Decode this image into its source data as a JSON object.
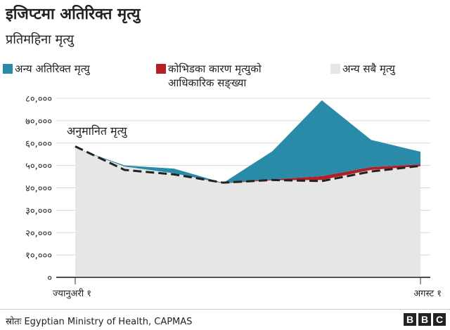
{
  "title": "इजिप्टमा अतिरिक्त मृत्यु",
  "subtitle": "प्रतिमहिना मृत्यु",
  "legend": [
    {
      "label": "अन्य अतिरिक्त मृत्यु",
      "color": "#2a8ba8"
    },
    {
      "label": "कोभिडका कारण मृत्युको आधिकारिक सङ्ख्या",
      "color": "#b21f24"
    },
    {
      "label": "अन्य सबै मृत्यु",
      "color": "#e6e6e6"
    }
  ],
  "chart_data": {
    "type": "area",
    "stacked": true,
    "x": [
      "ज्यानुअरी १",
      "",
      "",
      "",
      "",
      "",
      "",
      "अगस्ट १"
    ],
    "x_tick_labels": [
      "ज्यानुअरी १",
      "अगस्ट १"
    ],
    "ylim": [
      0,
      80000
    ],
    "y_ticks": [
      0,
      10000,
      20000,
      30000,
      40000,
      50000,
      60000,
      70000,
      80000
    ],
    "y_tick_labels": [
      "०",
      "१०,०००",
      "२०,०००",
      "३०,०००",
      "४०,०००",
      "५०,०००",
      "६०,०००",
      "७०,०००",
      "८०,०००"
    ],
    "series": [
      {
        "name": "अन्य सबै मृत्यु",
        "color": "#e6e6e6",
        "values": [
          57800,
          49500,
          46500,
          42000,
          43400,
          43500,
          48000,
          49700
        ]
      },
      {
        "name": "कोभिडका कारण मृत्युको आधिकारिक सङ्ख्या",
        "color": "#b21f24",
        "values": [
          0,
          0,
          0,
          200,
          400,
          1700,
          1300,
          800
        ]
      },
      {
        "name": "अन्य अतिरिक्त मृत्यु",
        "color": "#2a8ba8",
        "values": [
          0,
          500,
          2100,
          0,
          12600,
          33900,
          12100,
          5600
        ]
      }
    ],
    "expected": {
      "name": "अनुमानित मृत्यु",
      "values": [
        58500,
        48000,
        46000,
        42300,
        43500,
        43000,
        47300,
        49800
      ]
    },
    "grid": true
  },
  "footer": {
    "source": "स्रोतः Egyptian Ministry of Health, CAPMAS",
    "logo": [
      "B",
      "B",
      "C"
    ]
  }
}
